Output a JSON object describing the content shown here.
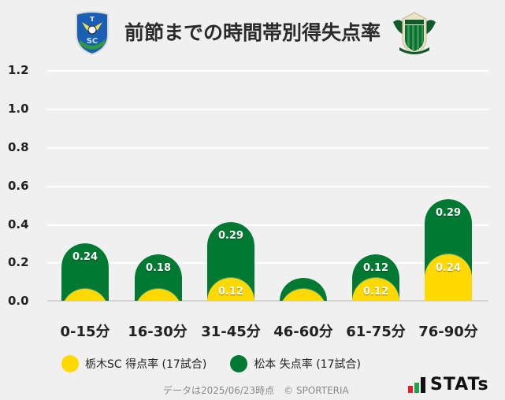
{
  "header": {
    "title": "前節までの時間帯別得失点率",
    "left_crest": "tochigi-sc-crest",
    "right_crest": "matsumoto-yamaga-crest"
  },
  "colors": {
    "background": "#f0f0f0",
    "scored": "#ffd900",
    "conceded": "#007a33",
    "gridline": "#ffffff",
    "baseline": "#d4d4d4"
  },
  "yaxis": {
    "ticks": [
      "1.2",
      "1.0",
      "0.8",
      "0.6",
      "0.4",
      "0.2",
      "0.0"
    ]
  },
  "xaxis": {
    "labels": [
      "0-15分",
      "16-30分",
      "31-45分",
      "46-60分",
      "61-75分",
      "76-90分"
    ]
  },
  "legend": {
    "items": [
      {
        "label": "栃木SC 得点率 (17試合)",
        "color": "#ffd900"
      },
      {
        "label": "松本 失点率 (17試合)",
        "color": "#007a33"
      }
    ]
  },
  "footer": {
    "text": "データは2025/06/23時点　© SPORTERIA",
    "brand": "STATs"
  },
  "chart_data": {
    "type": "bar",
    "stacked": true,
    "title": "前節までの時間帯別得失点率",
    "xlabel": "",
    "ylabel": "",
    "ylim": [
      0,
      1.2
    ],
    "yticks": [
      0.0,
      0.2,
      0.4,
      0.6,
      0.8,
      1.0,
      1.2
    ],
    "grid": true,
    "legend_position": "bottom",
    "categories": [
      "0-15分",
      "16-30分",
      "31-45分",
      "46-60分",
      "61-75分",
      "76-90分"
    ],
    "series": [
      {
        "name": "栃木SC 得点率 (17試合)",
        "color": "#ffd900",
        "values": [
          0.06,
          0.06,
          0.12,
          0.06,
          0.12,
          0.24
        ],
        "labels": [
          "",
          "",
          "0.12",
          "",
          "0.12",
          "0.24"
        ]
      },
      {
        "name": "松本 失点率 (17試合)",
        "color": "#007a33",
        "values": [
          0.24,
          0.18,
          0.29,
          0.06,
          0.12,
          0.29
        ],
        "labels": [
          "0.24",
          "0.18",
          "0.29",
          "",
          "0.12",
          "0.29"
        ]
      }
    ]
  }
}
